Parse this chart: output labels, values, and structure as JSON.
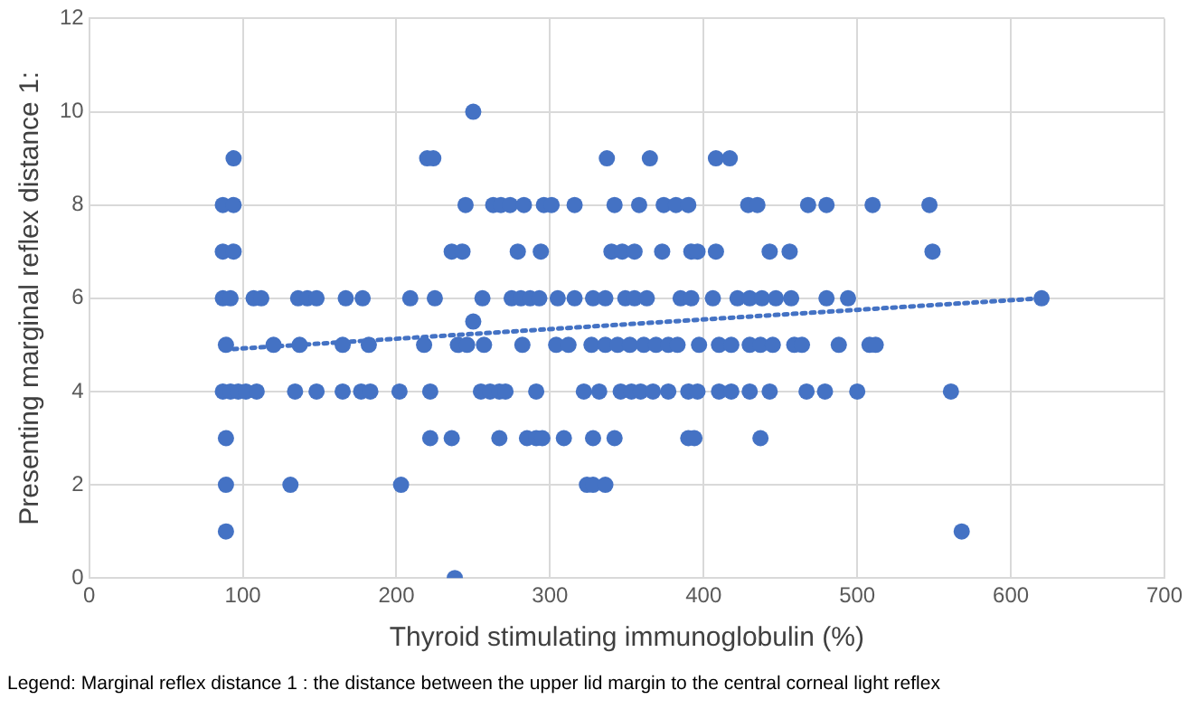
{
  "chart_data": {
    "type": "scatter",
    "xlabel": "Thyroid stimulating immunoglobulin (%)",
    "ylabel": "Presenting marginal reflex distance 1:",
    "annotations": [
      "Legend: Marginal reflex distance 1 : the distance between the upper lid margin to the central corneal light reflex"
    ],
    "xlim": [
      0,
      700
    ],
    "xticks": [
      0,
      100,
      200,
      300,
      400,
      500,
      600,
      700
    ],
    "ylim": [
      0,
      12
    ],
    "yticks": [
      0,
      2,
      4,
      6,
      8,
      10,
      12
    ],
    "grid": true,
    "legend": false,
    "marker": "circle",
    "series": [
      {
        "type": "scatter",
        "color": "#4472c4",
        "x": [
          250,
          94,
          220,
          224,
          337,
          365,
          408,
          417,
          87,
          94,
          245,
          263,
          268,
          274,
          283,
          296,
          301,
          316,
          342,
          358,
          374,
          382,
          390,
          429,
          435,
          468,
          480,
          510,
          547,
          87,
          94,
          236,
          243,
          279,
          294,
          340,
          347,
          355,
          373,
          392,
          396,
          408,
          443,
          456,
          549,
          87,
          92,
          107,
          112,
          136,
          142,
          148,
          167,
          178,
          209,
          225,
          256,
          275,
          281,
          287,
          293,
          305,
          316,
          328,
          336,
          349,
          355,
          363,
          385,
          392,
          406,
          422,
          430,
          438,
          447,
          457,
          480,
          494,
          620,
          250,
          89,
          120,
          137,
          165,
          182,
          218,
          240,
          246,
          257,
          282,
          304,
          312,
          327,
          336,
          344,
          352,
          361,
          369,
          377,
          383,
          397,
          410,
          418,
          430,
          437,
          445,
          459,
          464,
          488,
          508,
          512,
          87,
          92,
          97,
          102,
          109,
          134,
          148,
          165,
          177,
          183,
          202,
          222,
          255,
          261,
          267,
          271,
          291,
          322,
          332,
          346,
          353,
          359,
          367,
          377,
          390,
          396,
          410,
          418,
          430,
          443,
          467,
          479,
          500,
          561,
          89,
          222,
          236,
          267,
          285,
          291,
          295,
          309,
          328,
          342,
          390,
          394,
          437,
          89,
          131,
          203,
          324,
          328,
          336,
          89,
          568,
          238
        ],
        "values": [
          10,
          9,
          9,
          9,
          9,
          9,
          9,
          9,
          8,
          8,
          8,
          8,
          8,
          8,
          8,
          8,
          8,
          8,
          8,
          8,
          8,
          8,
          8,
          8,
          8,
          8,
          8,
          8,
          8,
          7,
          7,
          7,
          7,
          7,
          7,
          7,
          7,
          7,
          7,
          7,
          7,
          7,
          7,
          7,
          7,
          6,
          6,
          6,
          6,
          6,
          6,
          6,
          6,
          6,
          6,
          6,
          6,
          6,
          6,
          6,
          6,
          6,
          6,
          6,
          6,
          6,
          6,
          6,
          6,
          6,
          6,
          6,
          6,
          6,
          6,
          6,
          6,
          6,
          6,
          5.5,
          5,
          5,
          5,
          5,
          5,
          5,
          5,
          5,
          5,
          5,
          5,
          5,
          5,
          5,
          5,
          5,
          5,
          5,
          5,
          5,
          5,
          5,
          5,
          5,
          5,
          5,
          5,
          5,
          5,
          5,
          5,
          4,
          4,
          4,
          4,
          4,
          4,
          4,
          4,
          4,
          4,
          4,
          4,
          4,
          4,
          4,
          4,
          4,
          4,
          4,
          4,
          4,
          4,
          4,
          4,
          4,
          4,
          4,
          4,
          4,
          4,
          4,
          4,
          4,
          4,
          3,
          3,
          3,
          3,
          3,
          3,
          3,
          3,
          3,
          3,
          3,
          3,
          3,
          2,
          2,
          2,
          2,
          2,
          2,
          1,
          1,
          0
        ]
      },
      {
        "type": "line",
        "color": "#4472c4",
        "x": [
          88,
          620
        ],
        "values": [
          4.9,
          6.0
        ],
        "line_style": "dotted",
        "marker": "none"
      }
    ]
  }
}
